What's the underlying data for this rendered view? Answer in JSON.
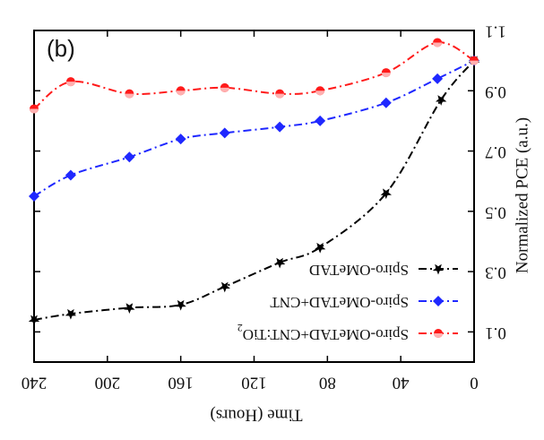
{
  "chart_data": {
    "type": "line",
    "panel_label": "(b)",
    "xlabel": "Time (Hours)",
    "ylabel": "Normalized PCE (a.u.)",
    "xlim": [
      0,
      240
    ],
    "ylim": [
      0.0,
      1.1
    ],
    "x_axis_reversed": true,
    "y_axis_side": "right",
    "mirrored": true,
    "x_ticks": [
      0,
      40,
      80,
      120,
      160,
      200,
      240
    ],
    "x_tick_labels": [
      "0",
      "40",
      "80",
      "120",
      "160",
      "200",
      "240"
    ],
    "y_ticks": [
      0.1,
      0.3,
      0.5,
      0.7,
      0.9,
      1.1
    ],
    "y_tick_labels": [
      "0.1",
      "0.3",
      "0.5",
      "0.7",
      "0.9",
      "1.1"
    ],
    "legend_position": "bottom-right",
    "series": [
      {
        "name": "Spiro-OMeTAD",
        "color": "#000000",
        "marker": "star",
        "line_style": "dash-dot",
        "x": [
          0,
          18,
          48,
          84,
          106,
          136,
          160,
          188,
          220,
          240
        ],
        "y": [
          1.0,
          0.87,
          0.56,
          0.38,
          0.33,
          0.25,
          0.19,
          0.18,
          0.16,
          0.14
        ]
      },
      {
        "name": "Spiro-OMeTAD+CNT",
        "color": "#1f28ff",
        "marker": "diamond",
        "line_style": "dash-dot",
        "x": [
          0,
          20,
          48,
          84,
          106,
          136,
          160,
          188,
          220,
          240
        ],
        "y": [
          1.0,
          0.94,
          0.86,
          0.8,
          0.78,
          0.76,
          0.74,
          0.68,
          0.62,
          0.55
        ]
      },
      {
        "name": "Spiro-OMeTAD+CNT:TiO2",
        "color": "#ff1a1a",
        "marker": "circle",
        "line_style": "dash-dot",
        "x": [
          0,
          20,
          48,
          84,
          106,
          136,
          160,
          188,
          220,
          240
        ],
        "y": [
          1.0,
          1.06,
          0.96,
          0.9,
          0.89,
          0.91,
          0.9,
          0.89,
          0.93,
          0.84
        ]
      }
    ],
    "legend_labels": [
      {
        "base": "Spiro-OMeTAD",
        "sub": ""
      },
      {
        "base": "Spiro-OMeTAD+CNT",
        "sub": ""
      },
      {
        "base": "Spiro-OMeTAD+CNT:TiO",
        "sub": "2"
      }
    ]
  }
}
